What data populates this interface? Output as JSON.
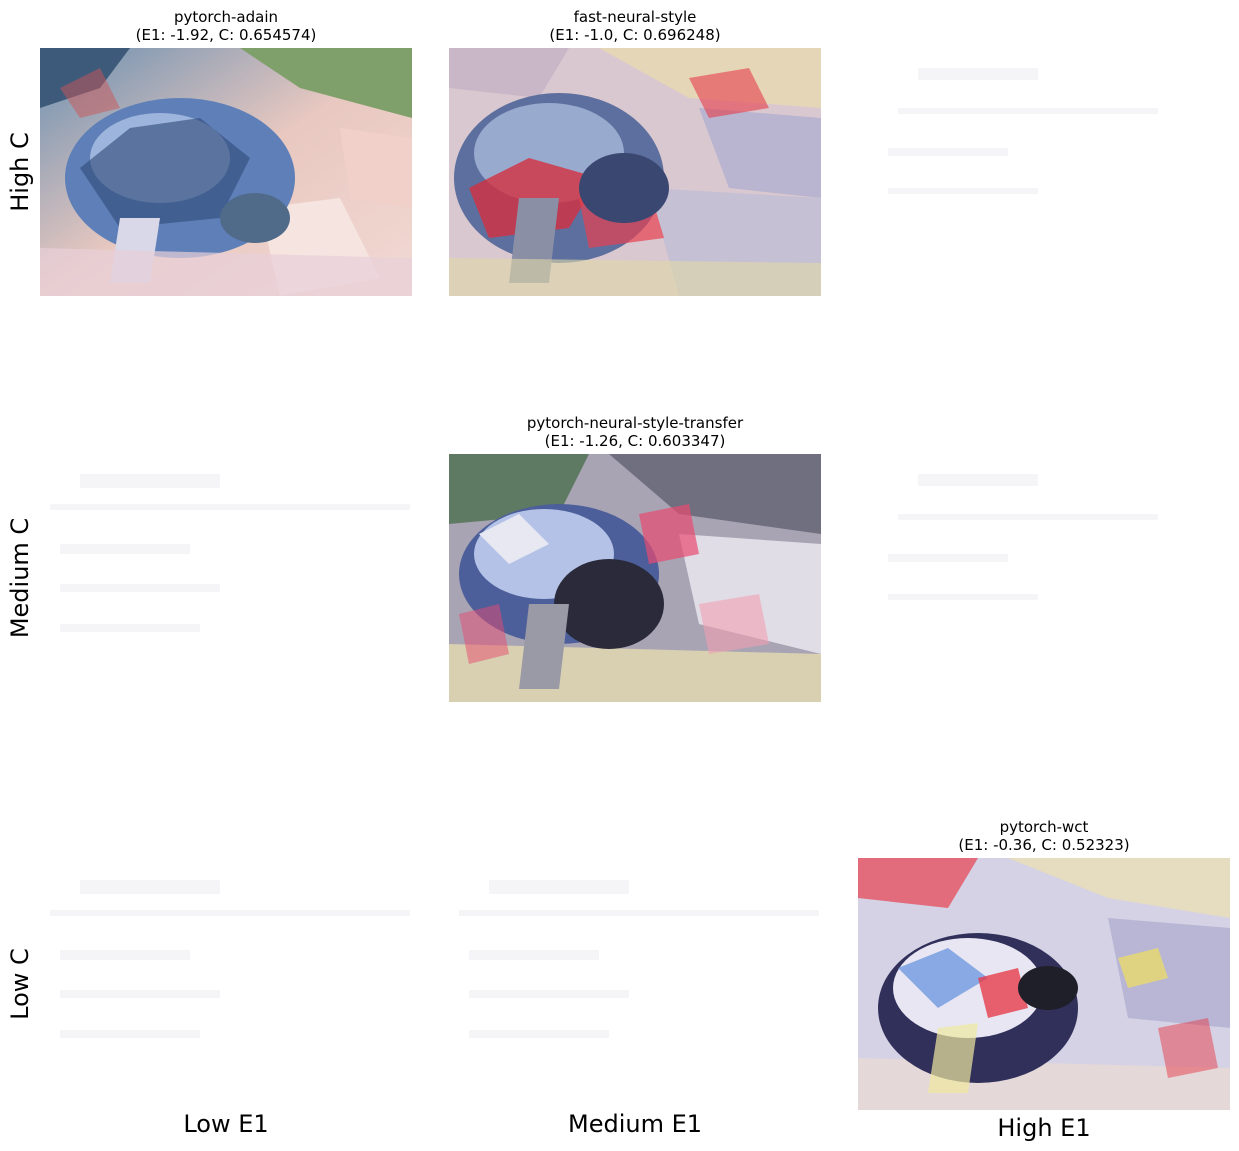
{
  "row_labels": [
    "High C",
    "Medium C",
    "Low C"
  ],
  "col_labels": [
    "Low E1",
    "Medium E1",
    "High E1"
  ],
  "cells": [
    {
      "name": "pytorch-adain",
      "metrics": "(E1: -1.92, C: 0.654574)"
    },
    {
      "name": "fast-neural-style",
      "metrics": "(E1: -1.0, C: 0.696248)"
    },
    {
      "name": "pytorch-neural-style-transfer",
      "metrics": "(E1: -1.26, C: 0.603347)"
    },
    {
      "name": "pytorch-wct",
      "metrics": "(E1: -0.36, C: 0.52323)"
    }
  ]
}
